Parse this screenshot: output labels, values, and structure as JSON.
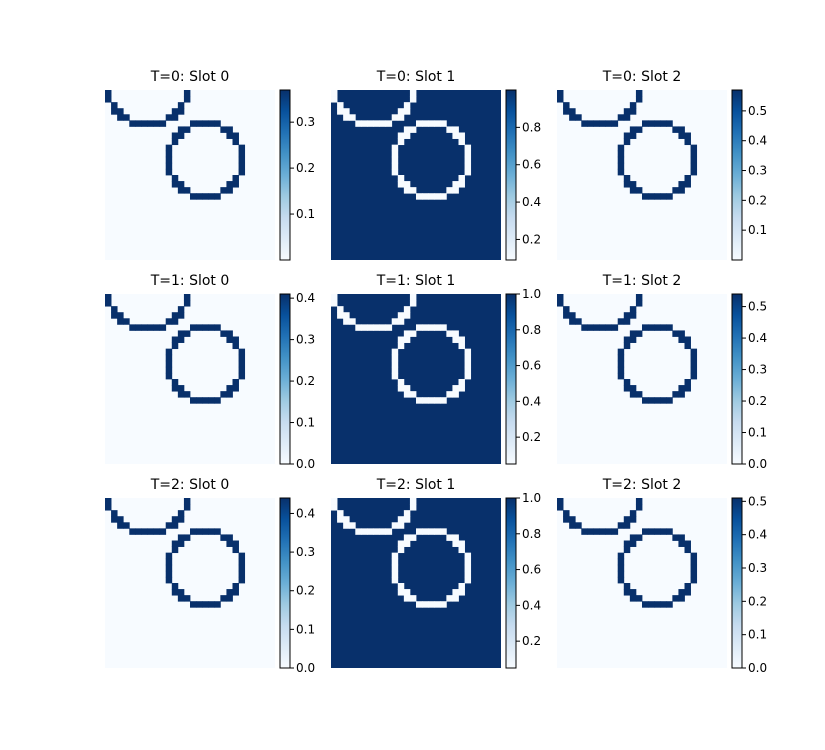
{
  "chart_data": [
    {
      "type": "heatmap",
      "title": "T=0: Slot 0",
      "colormap": "Blues",
      "background_level": "min",
      "ring_level": "max",
      "colorbar": {
        "ticks": [
          "0.1",
          "0.2",
          "0.3"
        ],
        "tick_values": [
          0.1,
          0.2,
          0.3
        ],
        "vmin": 0.0,
        "vmax": 0.37
      }
    },
    {
      "type": "heatmap",
      "title": "T=0: Slot 1",
      "colormap": "Blues",
      "background_level": "max",
      "ring_level": "min",
      "colorbar": {
        "ticks": [
          "0.2",
          "0.4",
          "0.6",
          "0.8"
        ],
        "tick_values": [
          0.2,
          0.4,
          0.6,
          0.8
        ],
        "vmin": 0.09,
        "vmax": 1.0
      }
    },
    {
      "type": "heatmap",
      "title": "T=0: Slot 2",
      "colormap": "Blues",
      "background_level": "min",
      "ring_level": "max",
      "colorbar": {
        "ticks": [
          "0.1",
          "0.2",
          "0.3",
          "0.4",
          "0.5"
        ],
        "tick_values": [
          0.1,
          0.2,
          0.3,
          0.4,
          0.5
        ],
        "vmin": 0.0,
        "vmax": 0.57
      }
    },
    {
      "type": "heatmap",
      "title": "T=1: Slot 0",
      "colormap": "Blues",
      "background_level": "min",
      "ring_level": "max",
      "colorbar": {
        "ticks": [
          "0.0",
          "0.1",
          "0.2",
          "0.3",
          "0.4"
        ],
        "tick_values": [
          0.0,
          0.1,
          0.2,
          0.3,
          0.4
        ],
        "vmin": 0.0,
        "vmax": 0.41
      }
    },
    {
      "type": "heatmap",
      "title": "T=1: Slot 1",
      "colormap": "Blues",
      "background_level": "max",
      "ring_level": "min",
      "colorbar": {
        "ticks": [
          "0.2",
          "0.4",
          "0.6",
          "0.8",
          "1.0"
        ],
        "tick_values": [
          0.2,
          0.4,
          0.6,
          0.8,
          1.0
        ],
        "vmin": 0.05,
        "vmax": 1.0
      }
    },
    {
      "type": "heatmap",
      "title": "T=1: Slot 2",
      "colormap": "Blues",
      "background_level": "min",
      "ring_level": "max",
      "colorbar": {
        "ticks": [
          "0.0",
          "0.1",
          "0.2",
          "0.3",
          "0.4",
          "0.5"
        ],
        "tick_values": [
          0.0,
          0.1,
          0.2,
          0.3,
          0.4,
          0.5
        ],
        "vmin": 0.0,
        "vmax": 0.54
      }
    },
    {
      "type": "heatmap",
      "title": "T=2: Slot 0",
      "colormap": "Blues",
      "background_level": "min",
      "ring_level": "max",
      "colorbar": {
        "ticks": [
          "0.0",
          "0.1",
          "0.2",
          "0.3",
          "0.4"
        ],
        "tick_values": [
          0.0,
          0.1,
          0.2,
          0.3,
          0.4
        ],
        "vmin": 0.0,
        "vmax": 0.44
      }
    },
    {
      "type": "heatmap",
      "title": "T=2: Slot 1",
      "colormap": "Blues",
      "background_level": "max",
      "ring_level": "min",
      "colorbar": {
        "ticks": [
          "0.2",
          "0.4",
          "0.6",
          "0.8",
          "1.0"
        ],
        "tick_values": [
          0.2,
          0.4,
          0.6,
          0.8,
          1.0
        ],
        "vmin": 0.05,
        "vmax": 1.0
      }
    },
    {
      "type": "heatmap",
      "title": "T=2: Slot 2",
      "colormap": "Blues",
      "background_level": "min",
      "ring_level": "max",
      "colorbar": {
        "ticks": [
          "0.0",
          "0.1",
          "0.2",
          "0.3",
          "0.4",
          "0.5"
        ],
        "tick_values": [
          0.0,
          0.1,
          0.2,
          0.3,
          0.4,
          0.5
        ],
        "vmin": 0.0,
        "vmax": 0.51
      }
    }
  ]
}
